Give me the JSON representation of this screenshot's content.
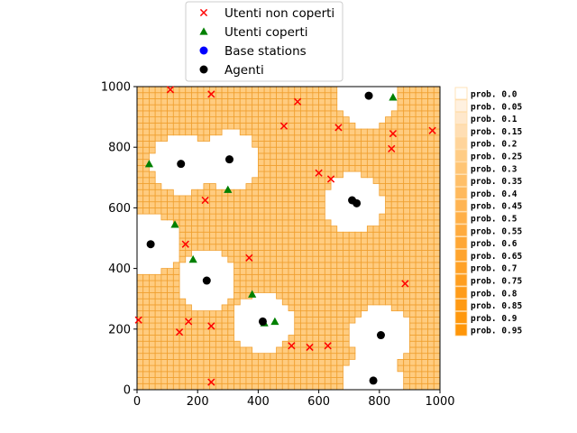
{
  "chart_data": {
    "type": "scatter",
    "title": "",
    "xlabel": "",
    "ylabel": "",
    "xlim": [
      0,
      1000
    ],
    "ylim": [
      0,
      1000
    ],
    "xticks": [
      "0",
      "200",
      "400",
      "600",
      "800",
      "1000"
    ],
    "yticks": [
      "0",
      "200",
      "400",
      "600",
      "800",
      "1000"
    ],
    "grid_cell_size": 20,
    "base_fill_color": "#ffcc80",
    "grid_line_color": "#f0a030",
    "coverage_radius": 100,
    "covered_zones": [
      {
        "x": 145,
        "y": 745
      },
      {
        "x": 305,
        "y": 755
      },
      {
        "x": 45,
        "y": 480
      },
      {
        "x": 230,
        "y": 360
      },
      {
        "x": 415,
        "y": 220
      },
      {
        "x": 715,
        "y": 615
      },
      {
        "x": 760,
        "y": 965
      },
      {
        "x": 805,
        "y": 180
      },
      {
        "x": 775,
        "y": 30
      }
    ],
    "series": [
      {
        "name": "Utenti non coperti",
        "marker": "x",
        "color": "#ff0000",
        "points": [
          {
            "x": 110,
            "y": 990
          },
          {
            "x": 245,
            "y": 975
          },
          {
            "x": 530,
            "y": 950
          },
          {
            "x": 485,
            "y": 870
          },
          {
            "x": 665,
            "y": 865
          },
          {
            "x": 845,
            "y": 845
          },
          {
            "x": 975,
            "y": 855
          },
          {
            "x": 840,
            "y": 795
          },
          {
            "x": 600,
            "y": 715
          },
          {
            "x": 640,
            "y": 695
          },
          {
            "x": 225,
            "y": 625
          },
          {
            "x": 160,
            "y": 480
          },
          {
            "x": 370,
            "y": 435
          },
          {
            "x": 885,
            "y": 350
          },
          {
            "x": 5,
            "y": 230
          },
          {
            "x": 170,
            "y": 225
          },
          {
            "x": 140,
            "y": 190
          },
          {
            "x": 245,
            "y": 210
          },
          {
            "x": 510,
            "y": 145
          },
          {
            "x": 570,
            "y": 140
          },
          {
            "x": 630,
            "y": 145
          },
          {
            "x": 245,
            "y": 25
          }
        ]
      },
      {
        "name": "Utenti coperti",
        "marker": "triangle",
        "color": "#008000",
        "points": [
          {
            "x": 845,
            "y": 965
          },
          {
            "x": 40,
            "y": 745
          },
          {
            "x": 300,
            "y": 660
          },
          {
            "x": 125,
            "y": 545
          },
          {
            "x": 185,
            "y": 430
          },
          {
            "x": 380,
            "y": 315
          },
          {
            "x": 420,
            "y": 220
          },
          {
            "x": 455,
            "y": 225
          }
        ]
      },
      {
        "name": "Base stations",
        "marker": "circle",
        "color": "#0000ff",
        "points": []
      },
      {
        "name": "Agenti",
        "marker": "circle",
        "color": "#000000",
        "points": [
          {
            "x": 765,
            "y": 970
          },
          {
            "x": 145,
            "y": 745
          },
          {
            "x": 305,
            "y": 760
          },
          {
            "x": 710,
            "y": 625
          },
          {
            "x": 725,
            "y": 615
          },
          {
            "x": 45,
            "y": 480
          },
          {
            "x": 230,
            "y": 360
          },
          {
            "x": 415,
            "y": 225
          },
          {
            "x": 805,
            "y": 180
          },
          {
            "x": 780,
            "y": 30
          }
        ]
      }
    ],
    "legend_placement": "top-center",
    "prob_legend": {
      "entries": [
        {
          "label": "prob. 0.0",
          "color": "#ffffff"
        },
        {
          "label": "prob. 0.05",
          "color": "#fff1e0"
        },
        {
          "label": "prob. 0.1",
          "color": "#ffe8cc"
        },
        {
          "label": "prob. 0.15",
          "color": "#ffdeb3"
        },
        {
          "label": "prob. 0.2",
          "color": "#ffd49a"
        },
        {
          "label": "prob. 0.25",
          "color": "#ffcc85"
        },
        {
          "label": "prob. 0.3",
          "color": "#ffc575"
        },
        {
          "label": "prob. 0.35",
          "color": "#ffbf68"
        },
        {
          "label": "prob. 0.4",
          "color": "#ffb95c"
        },
        {
          "label": "prob. 0.45",
          "color": "#ffb452"
        },
        {
          "label": "prob. 0.5",
          "color": "#ffaf47"
        },
        {
          "label": "prob. 0.55",
          "color": "#ffab3e"
        },
        {
          "label": "prob. 0.6",
          "color": "#ffa735"
        },
        {
          "label": "prob. 0.65",
          "color": "#ffa42d"
        },
        {
          "label": "prob. 0.7",
          "color": "#ffa126"
        },
        {
          "label": "prob. 0.75",
          "color": "#ff9e1f"
        },
        {
          "label": "prob. 0.8",
          "color": "#ff9c19"
        },
        {
          "label": "prob. 0.85",
          "color": "#ff9a13"
        },
        {
          "label": "prob. 0.9",
          "color": "#ff980d"
        },
        {
          "label": "prob. 0.95",
          "color": "#ff9608"
        }
      ]
    }
  }
}
